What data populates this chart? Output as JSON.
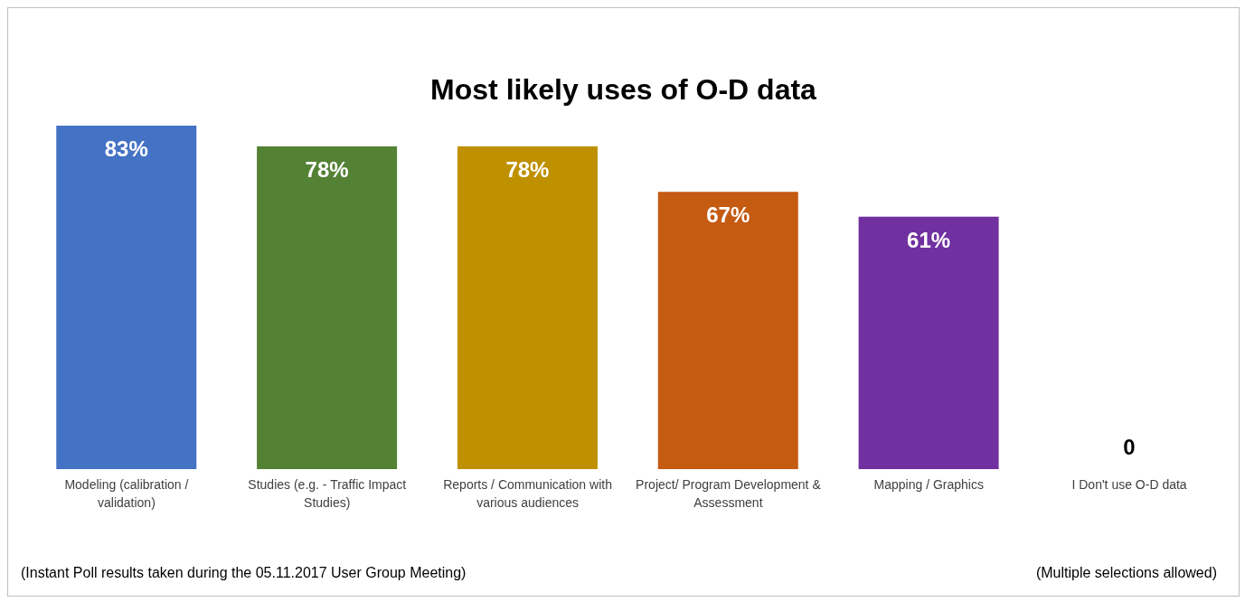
{
  "chart_data": {
    "type": "bar",
    "title": "Most likely uses of O-D data",
    "categories": [
      "Modeling (calibration / validation)",
      "Studies (e.g. - Traffic Impact Studies)",
      "Reports / Communication with various audiences",
      "Project/ Program Development & Assessment",
      "Mapping / Graphics",
      "I Don't use O-D data"
    ],
    "values": [
      83,
      78,
      78,
      67,
      61,
      0
    ],
    "value_labels": [
      "83%",
      "78%",
      "78%",
      "67%",
      "61%",
      "0"
    ],
    "colors": [
      "#4472c4",
      "#548235",
      "#bf9000",
      "#c55a11",
      "#7030a0",
      "#7f7f7f"
    ],
    "annotations": [
      "(Instant Poll results taken during the 05.11.2017 User Group Meeting)",
      "(Multiple selections allowed)"
    ]
  }
}
